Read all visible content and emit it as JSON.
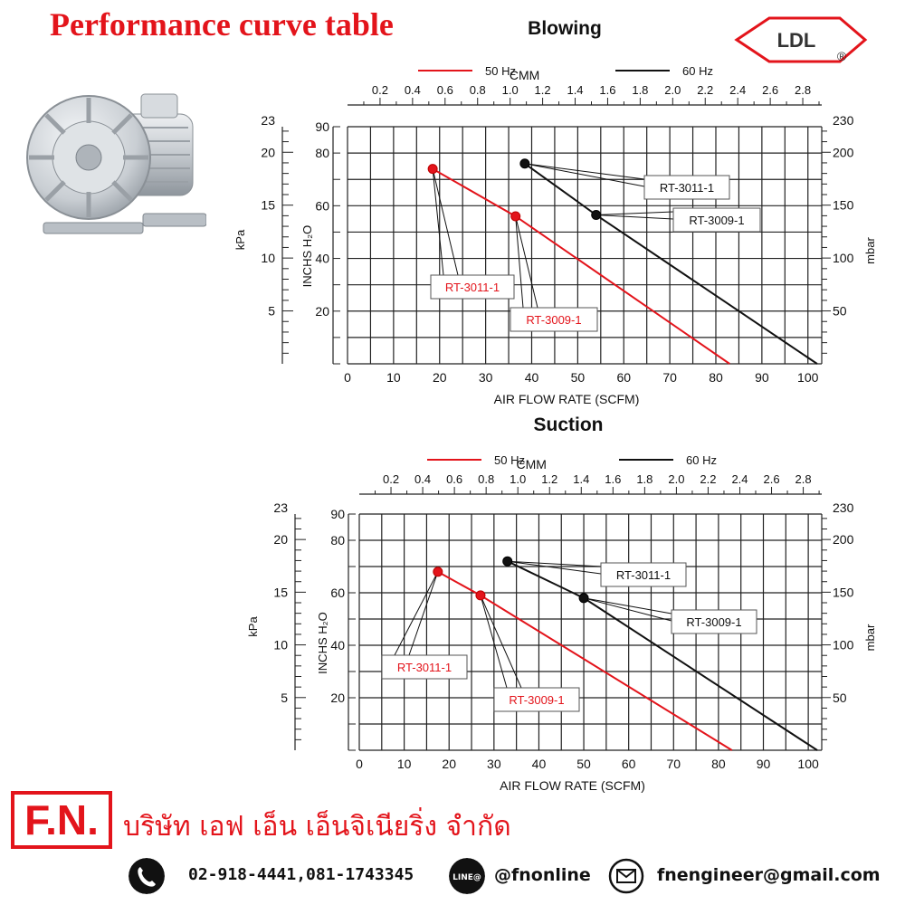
{
  "header": {
    "title": "Performance curve table",
    "brand_logo_text": "LDL",
    "brand_logo_mark": "®"
  },
  "product_image": {
    "icon": "regenerative-blower-image"
  },
  "chart_data": [
    {
      "type": "line",
      "title": "Blowing",
      "legend": [
        {
          "label": "50 Hz",
          "color": "#e3141b"
        },
        {
          "label": "60 Hz",
          "color": "#111111"
        }
      ],
      "xlabel": "AIR FLOW RATE (SCFM)",
      "xlim": [
        0,
        103
      ],
      "x_ticks": [
        0,
        10,
        20,
        30,
        40,
        50,
        60,
        70,
        80,
        90,
        100
      ],
      "top_axis": {
        "label": "CMM",
        "ticks": [
          0.2,
          0.4,
          0.6,
          0.8,
          1.0,
          1.2,
          1.4,
          1.6,
          1.8,
          2.0,
          2.2,
          2.4,
          2.6,
          2.8
        ]
      },
      "ylabel": "INCHS H₂O",
      "ylim": [
        0,
        90
      ],
      "y_ticks": [
        20,
        40,
        60,
        80,
        90
      ],
      "left_outer_axis": {
        "label": "kPa",
        "ticks": [
          5,
          10,
          15,
          20,
          23
        ]
      },
      "right_axis": {
        "label": "mbar",
        "ticks": [
          50,
          100,
          150,
          200,
          230
        ]
      },
      "grid": true,
      "series": [
        {
          "name": "50 Hz",
          "color": "#e3141b",
          "x": [
            18.5,
            36.5,
            83
          ],
          "y": [
            74,
            56,
            0
          ]
        },
        {
          "name": "60 Hz",
          "color": "#111111",
          "x": [
            38.5,
            54,
            102
          ],
          "y": [
            76,
            56.5,
            0
          ]
        }
      ],
      "annotations": [
        {
          "label": "RT-3011-1",
          "series": "50 Hz",
          "x": 18.5,
          "y": 74,
          "color": "#e3141b"
        },
        {
          "label": "RT-3009-1",
          "series": "50 Hz",
          "x": 36.5,
          "y": 56,
          "color": "#e3141b"
        },
        {
          "label": "RT-3011-1",
          "series": "60 Hz",
          "x": 38.5,
          "y": 76,
          "color": "#111111"
        },
        {
          "label": "RT-3009-1",
          "series": "60 Hz",
          "x": 54,
          "y": 56.5,
          "color": "#111111"
        }
      ]
    },
    {
      "type": "line",
      "title": "Suction",
      "legend": [
        {
          "label": "50 Hz",
          "color": "#e3141b"
        },
        {
          "label": "60 Hz",
          "color": "#111111"
        }
      ],
      "xlabel": "AIR FLOW RATE (SCFM)",
      "xlim": [
        0,
        103
      ],
      "x_ticks": [
        0,
        10,
        20,
        30,
        40,
        50,
        60,
        70,
        80,
        90,
        100
      ],
      "top_axis": {
        "label": "CMM",
        "ticks": [
          0.2,
          0.4,
          0.6,
          0.8,
          1.0,
          1.2,
          1.4,
          1.6,
          1.8,
          2.0,
          2.2,
          2.4,
          2.6,
          2.8
        ]
      },
      "ylabel": "INCHS H₂O",
      "ylim": [
        0,
        90
      ],
      "y_ticks": [
        20,
        40,
        60,
        80,
        90
      ],
      "left_outer_axis": {
        "label": "kPa",
        "ticks": [
          5,
          10,
          15,
          20,
          23
        ]
      },
      "right_axis": {
        "label": "mbar",
        "ticks": [
          50,
          100,
          150,
          200,
          230
        ]
      },
      "grid": true,
      "series": [
        {
          "name": "50 Hz",
          "color": "#e3141b",
          "x": [
            17.5,
            27,
            83
          ],
          "y": [
            68,
            59,
            0
          ]
        },
        {
          "name": "60 Hz",
          "color": "#111111",
          "x": [
            33,
            50,
            102
          ],
          "y": [
            72,
            58,
            0
          ]
        }
      ],
      "annotations": [
        {
          "label": "RT-3011-1",
          "series": "50 Hz",
          "x": 17.5,
          "y": 68,
          "color": "#e3141b"
        },
        {
          "label": "RT-3009-1",
          "series": "50 Hz",
          "x": 27,
          "y": 59,
          "color": "#e3141b"
        },
        {
          "label": "RT-3011-1",
          "series": "60 Hz",
          "x": 33,
          "y": 72,
          "color": "#111111"
        },
        {
          "label": "RT-3009-1",
          "series": "60 Hz",
          "x": 50,
          "y": 58,
          "color": "#111111"
        }
      ]
    }
  ],
  "footer": {
    "logo_text": "F.N.",
    "company_name": "บริษัท เอฟ เอ็น เอ็นจิเนียริ่ง จำกัด",
    "phone": "02-918-4441,081-1743345",
    "line_badge": "LINE@",
    "line_id": "@fnonline",
    "email": "fnengineer@gmail.com",
    "icons": [
      "phone-icon",
      "line-icon",
      "email-icon"
    ]
  }
}
